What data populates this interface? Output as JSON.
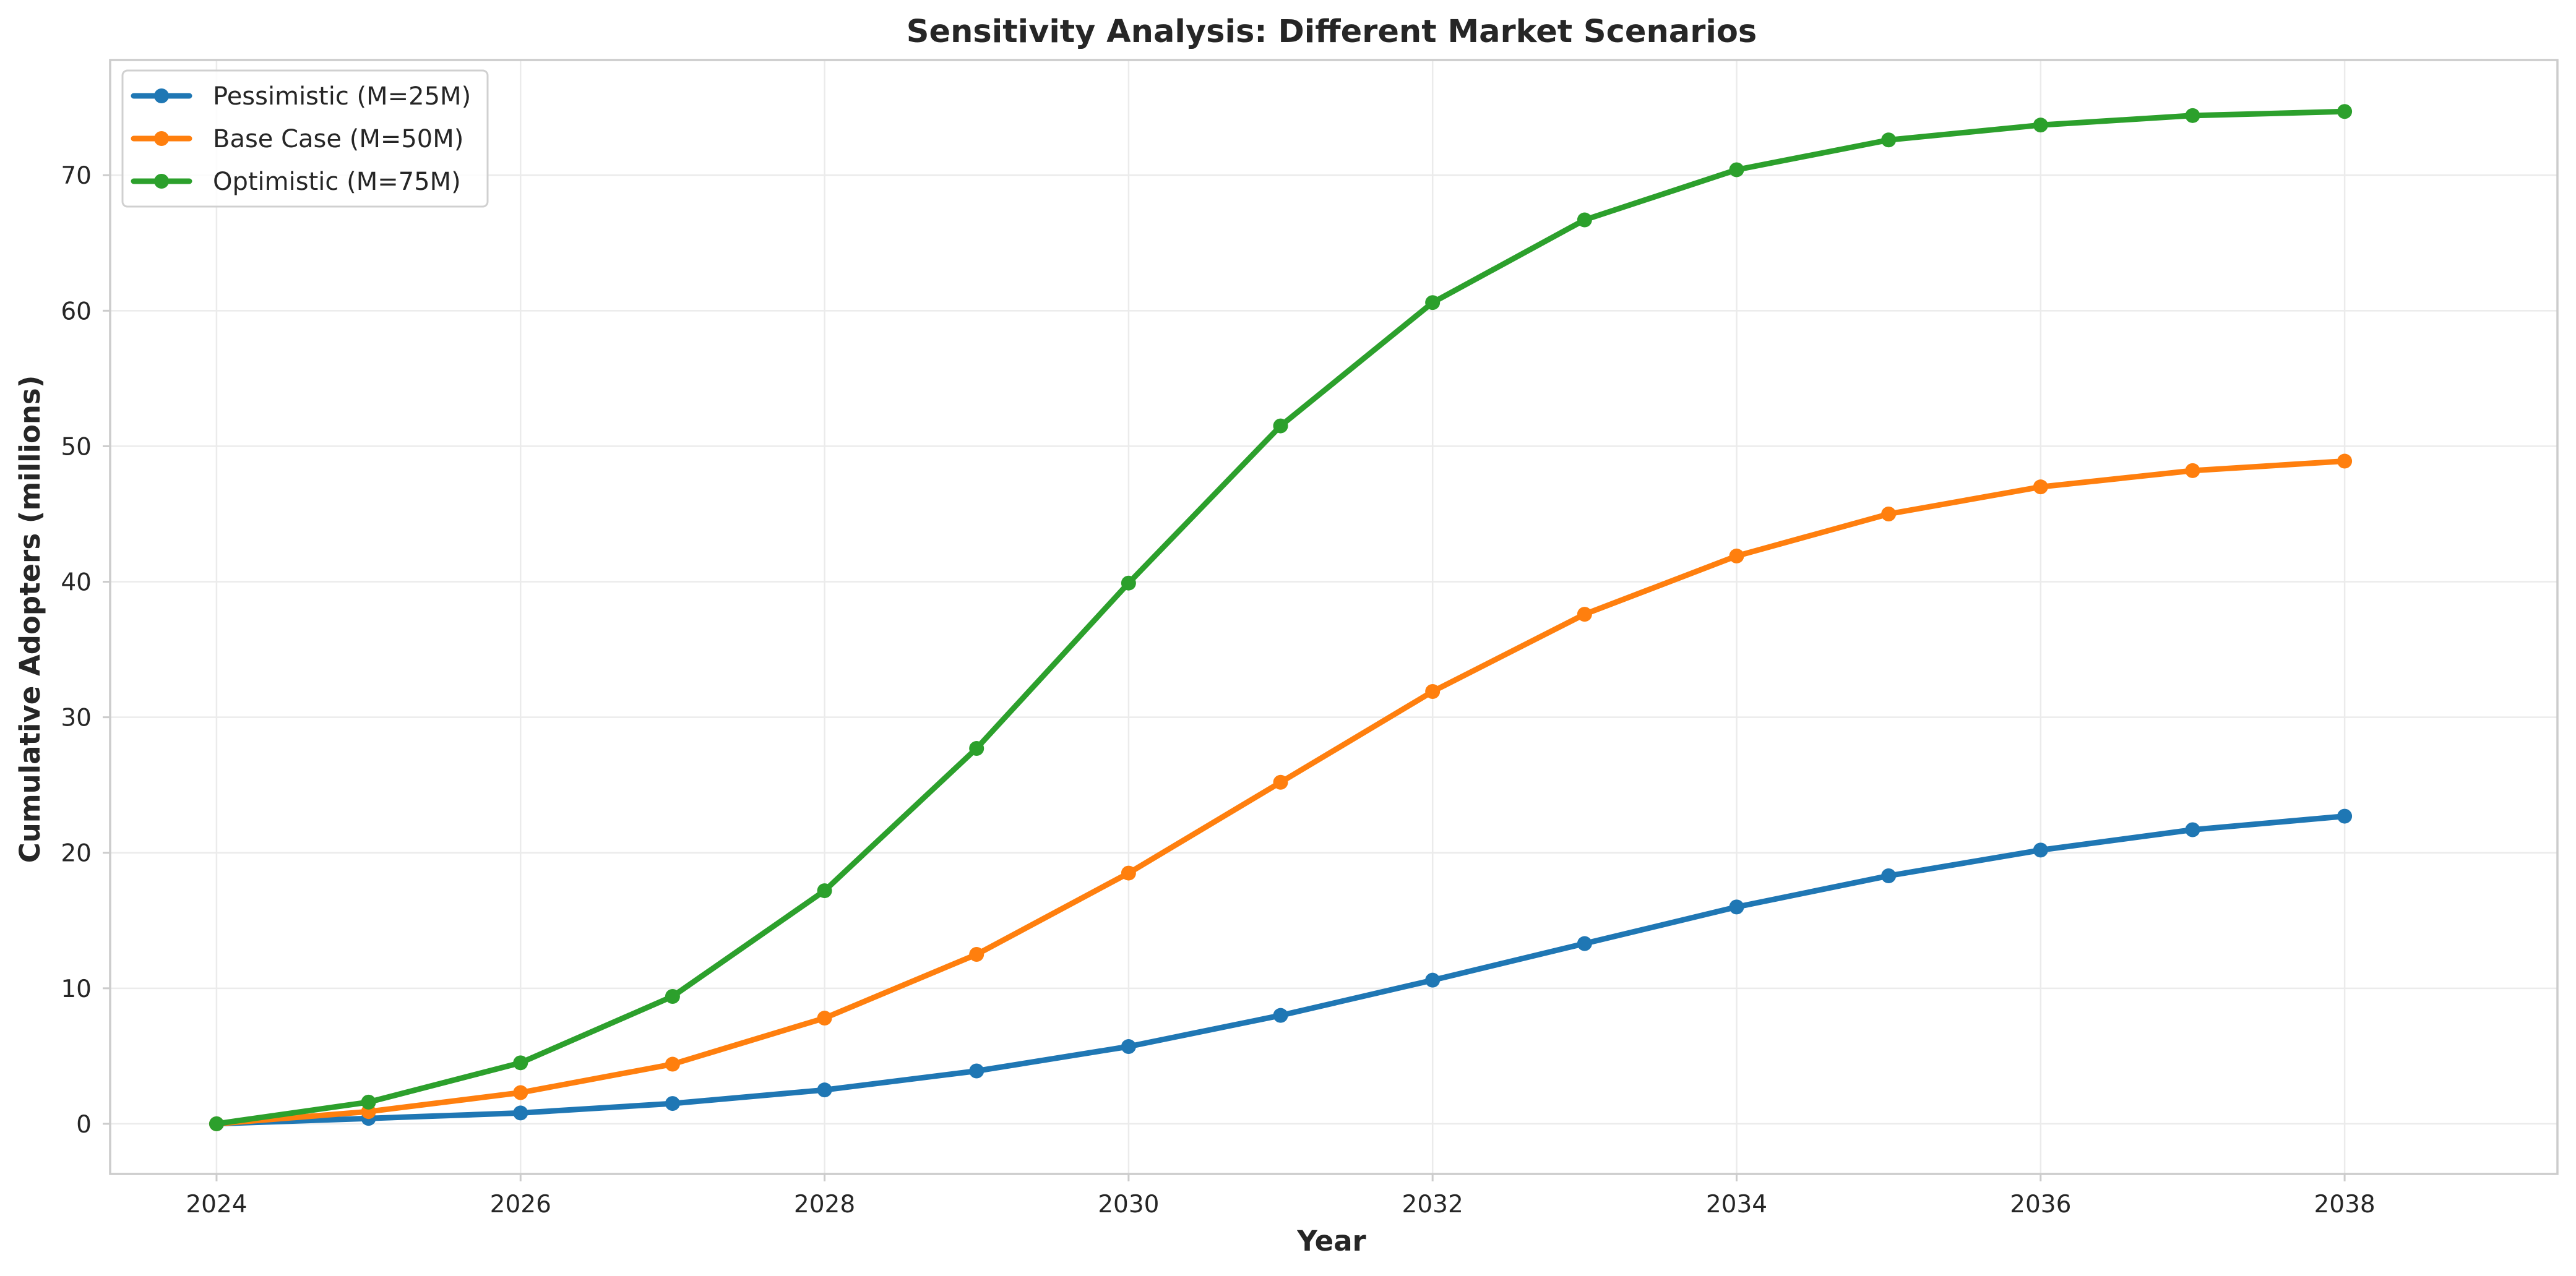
{
  "chart_data": {
    "type": "line",
    "title": "Sensitivity Analysis: Different Market Scenarios",
    "xlabel": "Year",
    "ylabel": "Cumulative Adopters (millions)",
    "x": [
      2024,
      2025,
      2026,
      2027,
      2028,
      2029,
      2030,
      2031,
      2032,
      2033,
      2034,
      2035,
      2036,
      2037,
      2038
    ],
    "xlim": [
      2023.3,
      2039.4
    ],
    "ylim": [
      -3.7,
      78.5
    ],
    "xticks": [
      2024,
      2026,
      2028,
      2030,
      2032,
      2034,
      2036,
      2038
    ],
    "yticks": [
      0,
      10,
      20,
      30,
      40,
      50,
      60,
      70
    ],
    "grid": true,
    "legend_position": "top-left",
    "series": [
      {
        "name": "Pessimistic (M=25M)",
        "color": "#1f77b4",
        "values": [
          0,
          0.4,
          0.8,
          1.5,
          2.5,
          3.9,
          5.7,
          8.0,
          10.6,
          13.3,
          16.0,
          18.3,
          20.2,
          21.7,
          22.7
        ]
      },
      {
        "name": "Base Case (M=50M)",
        "color": "#ff7f0e",
        "values": [
          0,
          0.9,
          2.3,
          4.4,
          7.8,
          12.5,
          18.5,
          25.2,
          31.9,
          37.6,
          41.9,
          45.0,
          47.0,
          48.2,
          48.9
        ]
      },
      {
        "name": "Optimistic (M=75M)",
        "color": "#2ca02c",
        "values": [
          0,
          1.6,
          4.5,
          9.4,
          17.2,
          27.7,
          39.9,
          51.5,
          60.6,
          66.7,
          70.4,
          72.6,
          73.7,
          74.4,
          74.7
        ]
      }
    ]
  }
}
